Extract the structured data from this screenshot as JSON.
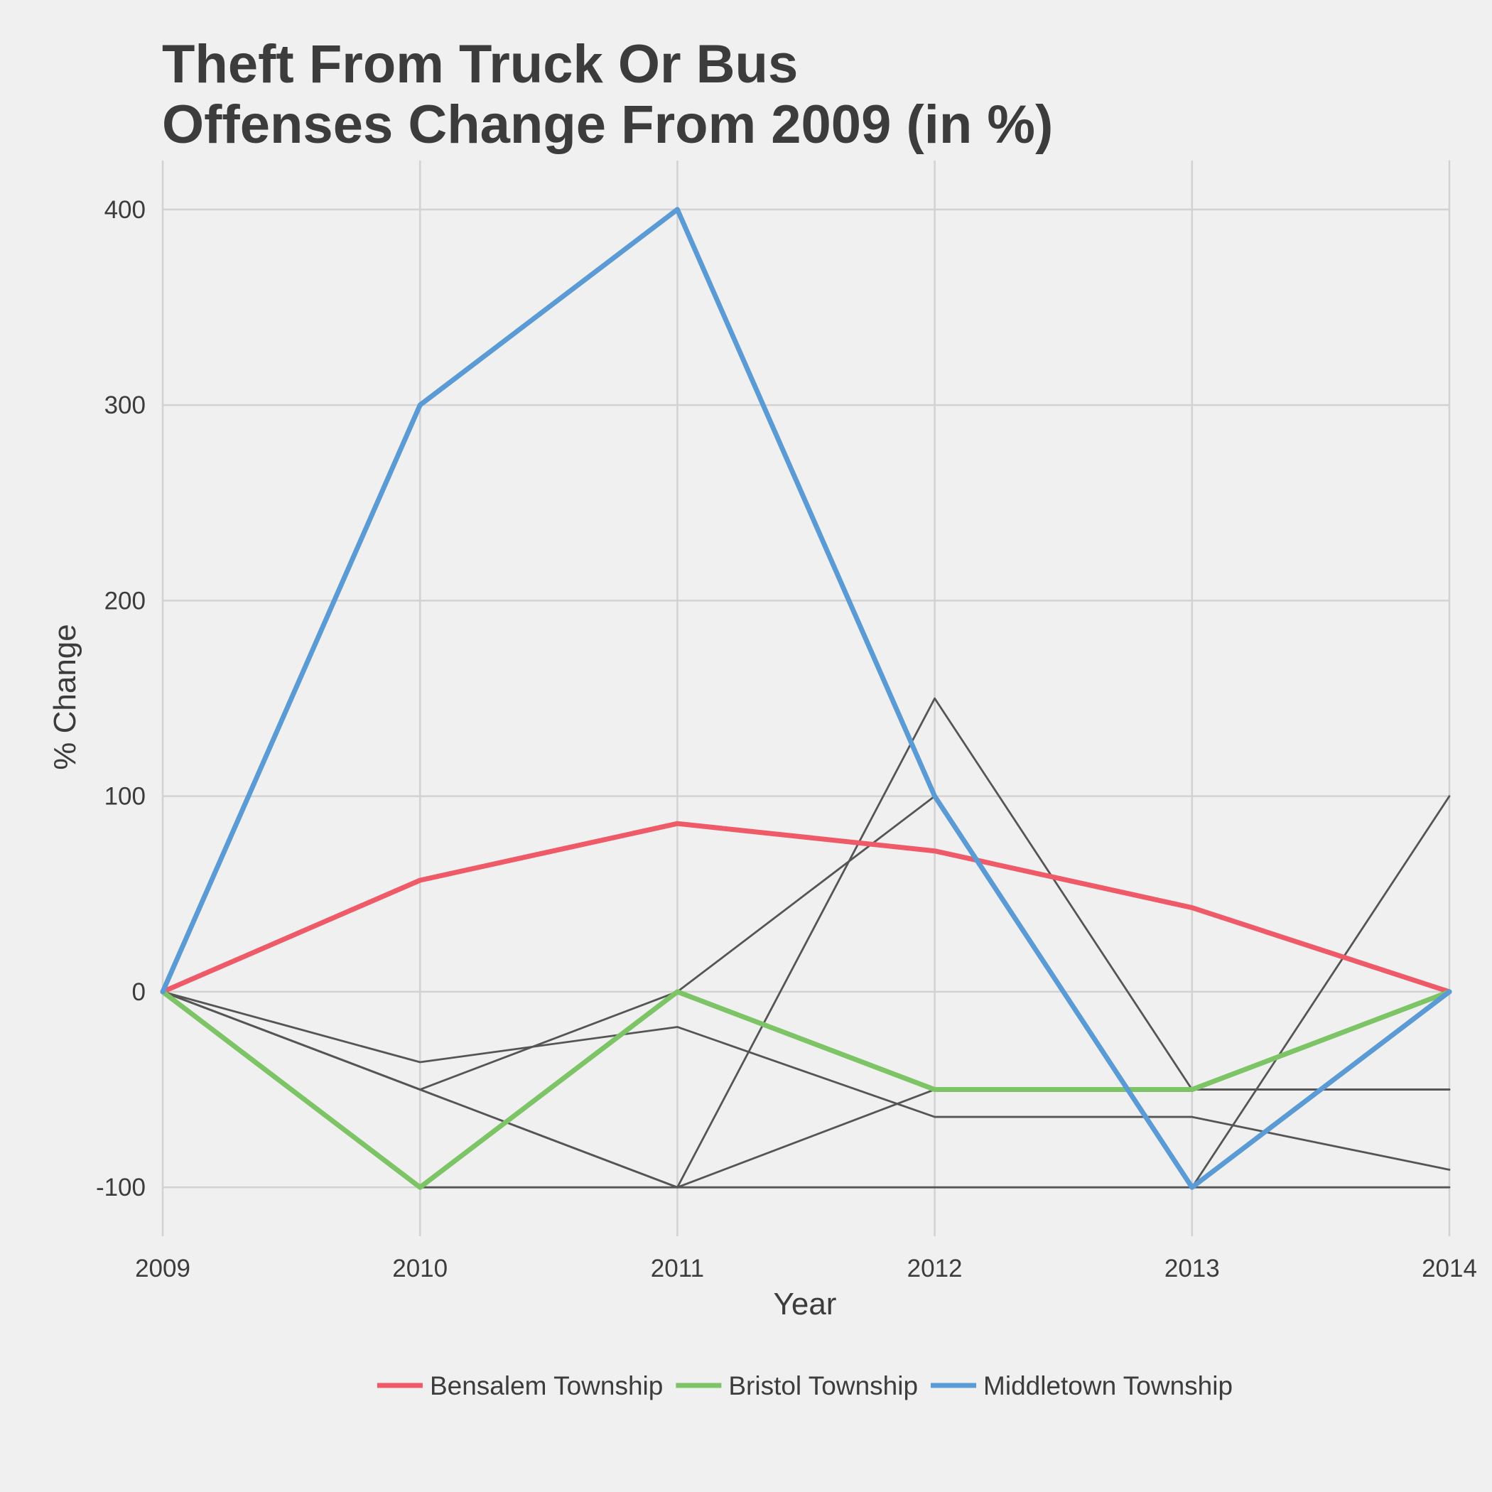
{
  "chart_data": {
    "type": "line",
    "title_lines": [
      "Theft From Truck Or Bus",
      "Offenses Change From 2009 (in %)"
    ],
    "xlabel": "Year",
    "ylabel": "% Change",
    "x": [
      2009,
      2010,
      2011,
      2012,
      2013,
      2014
    ],
    "x_tick_labels": [
      "2009",
      "2010",
      "2011",
      "2012",
      "2013",
      "2014"
    ],
    "y_ticks": [
      -100,
      0,
      100,
      200,
      300,
      400
    ],
    "y_tick_labels": [
      "-100",
      "0",
      "100",
      "200",
      "300",
      "400"
    ],
    "ylim": [
      -125,
      425
    ],
    "grid": true,
    "legend_position": "bottom",
    "series": [
      {
        "name": "Bensalem Township",
        "color": "#ef5a68",
        "highlight": true,
        "values": [
          0,
          57,
          86,
          72,
          43,
          0
        ]
      },
      {
        "name": "Bristol Township",
        "color": "#7cc465",
        "highlight": true,
        "values": [
          0,
          -100,
          0,
          -50,
          -50,
          0
        ]
      },
      {
        "name": "Middletown Township",
        "color": "#5b9bd5",
        "highlight": true,
        "values": [
          0,
          300,
          400,
          100,
          -100,
          0
        ]
      },
      {
        "color": "#555555",
        "highlight": false,
        "values": [
          0,
          -36,
          -18,
          -64,
          -64,
          -91
        ]
      },
      {
        "color": "#555555",
        "highlight": false,
        "values": [
          0,
          -50,
          -100,
          -50,
          -50,
          -50
        ]
      },
      {
        "color": "#555555",
        "highlight": false,
        "values": [
          0,
          -50,
          0,
          100,
          -100,
          100
        ]
      },
      {
        "color": "#555555",
        "highlight": false,
        "values": [
          0,
          -50,
          -100,
          150,
          -50,
          -50
        ]
      },
      {
        "color": "#555555",
        "highlight": false,
        "values": [
          0,
          -100,
          -100,
          -100,
          -100,
          -100
        ]
      }
    ]
  }
}
